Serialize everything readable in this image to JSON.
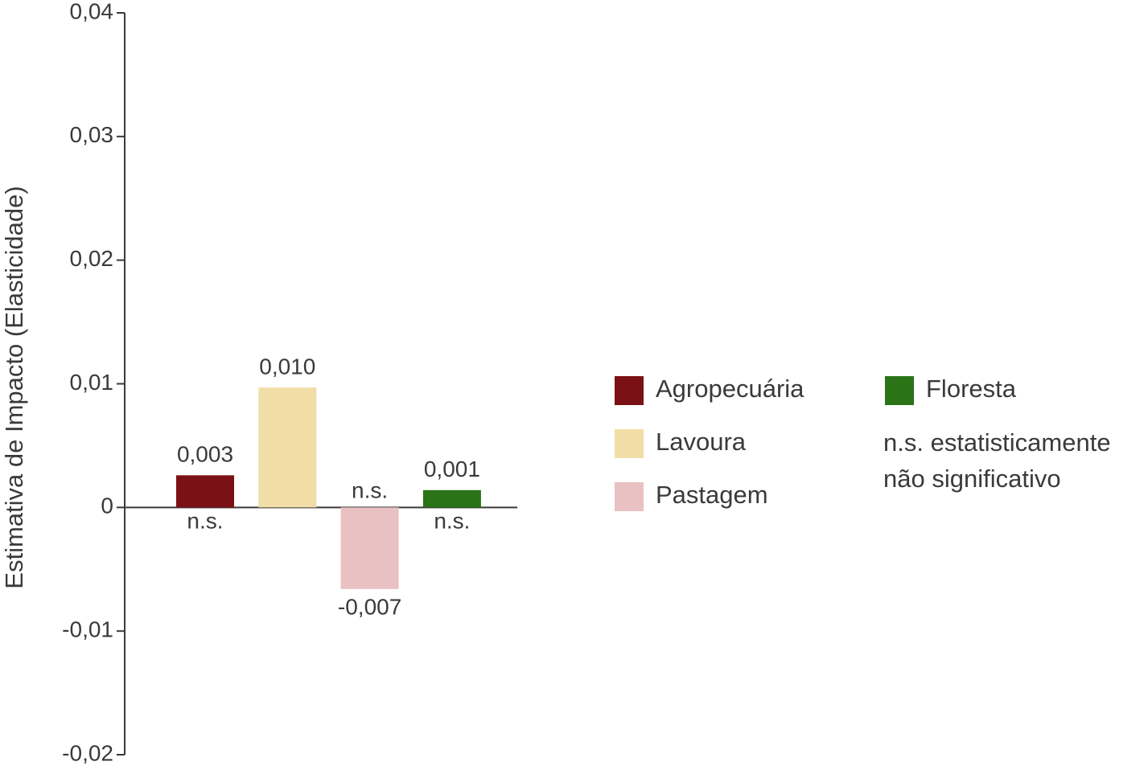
{
  "chart_data": {
    "type": "bar",
    "y_axis_label": "Estimativa de Impacto (Elasticidade)",
    "categories": [
      "Agropecuária",
      "Lavoura",
      "Pastagem",
      "Floresta"
    ],
    "values": [
      0.0026,
      0.0097,
      -0.0066,
      0.0014
    ],
    "value_labels": [
      "0,003",
      "0,010",
      "-0,007",
      "0,001"
    ],
    "annotations": [
      "n.s.",
      null,
      "n.s.",
      "n.s."
    ],
    "colors": [
      "#7a1114",
      "#f1dea6",
      "#e9c1c2",
      "#2a7317"
    ],
    "legend_note": [
      "n.s. estatisticamente",
      "não significativo"
    ],
    "ylim": [
      -0.02,
      0.04
    ],
    "yticks": [
      {
        "value": 0.04,
        "label": "0,04"
      },
      {
        "value": 0.03,
        "label": "0,03"
      },
      {
        "value": 0.02,
        "label": "0,02"
      },
      {
        "value": 0.01,
        "label": "0,01"
      },
      0,
      {
        "value": -0.01,
        "label": "-0,01"
      },
      {
        "value": -0.02,
        "label": "-0,02"
      }
    ]
  }
}
